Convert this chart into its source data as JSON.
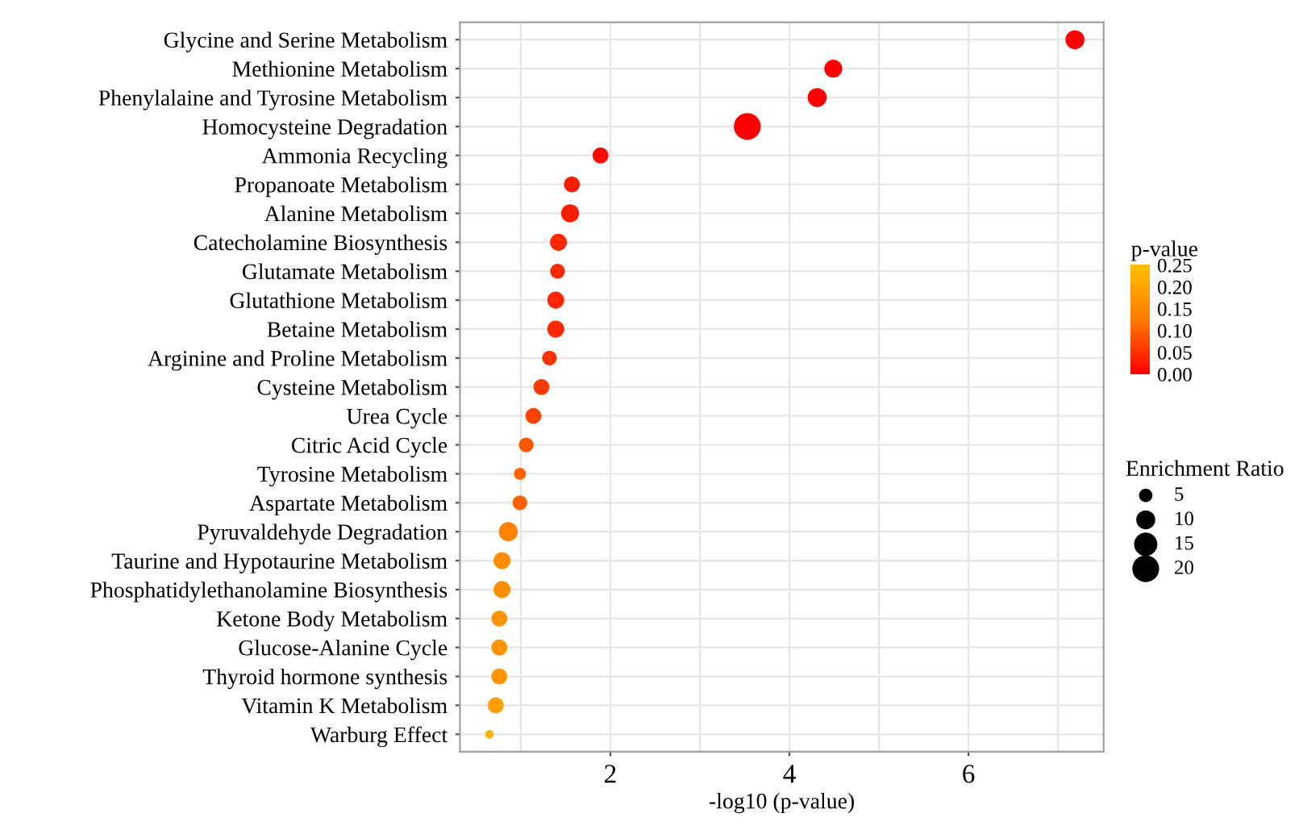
{
  "chart_data": {
    "type": "bubble",
    "orientation": "horizontal",
    "categories": [
      "Glycine and Serine Metabolism",
      "Methionine Metabolism",
      "Phenylalaine and Tyrosine Metabolism",
      "Homocysteine Degradation",
      "Ammonia Recycling",
      "Propanoate Metabolism",
      "Alanine Metabolism",
      "Catecholamine Biosynthesis",
      "Glutamate Metabolism",
      "Glutathione Metabolism",
      "Betaine Metabolism",
      "Arginine and Proline Metabolism",
      "Cysteine Metabolism",
      "Urea Cycle",
      "Citric Acid Cycle",
      "Tyrosine Metabolism",
      "Aspartate Metabolism",
      "Pyruvaldehyde Degradation",
      "Taurine and Hypotaurine Metabolism",
      "Phosphatidylethanolamine Biosynthesis",
      "Ketone Body Metabolism",
      "Glucose-Alanine Cycle",
      "Thyroid hormone synthesis",
      "Vitamin K Metabolism",
      "Warburg Effect"
    ],
    "values": [
      7.19,
      4.49,
      4.31,
      3.53,
      1.89,
      1.57,
      1.55,
      1.42,
      1.41,
      1.39,
      1.39,
      1.32,
      1.23,
      1.14,
      1.06,
      0.99,
      0.99,
      0.86,
      0.79,
      0.79,
      0.76,
      0.76,
      0.76,
      0.72,
      0.65
    ],
    "sizes": [
      10,
      9,
      10,
      20,
      7,
      7,
      9,
      8,
      6,
      8,
      8,
      6,
      7,
      7,
      6,
      4,
      6,
      10,
      8,
      8,
      7,
      7,
      7,
      7,
      2
    ],
    "size_legend": [
      5,
      10,
      15,
      20
    ],
    "cvalues": [
      0.0,
      0.0,
      0.0,
      0.0,
      0.01,
      0.03,
      0.03,
      0.04,
      0.04,
      0.04,
      0.04,
      0.05,
      0.06,
      0.07,
      0.09,
      0.1,
      0.1,
      0.14,
      0.16,
      0.16,
      0.17,
      0.17,
      0.17,
      0.19,
      0.22
    ],
    "clim": [
      0,
      0.25
    ],
    "cticks": [
      {
        "value": 0,
        "label": "0.00"
      },
      {
        "value": 0.05,
        "label": "0.05"
      },
      {
        "value": 0.1,
        "label": "0.10"
      },
      {
        "value": 0.15,
        "label": "0.15"
      },
      {
        "value": 0.2,
        "label": "0.20"
      },
      {
        "value": 0.25,
        "label": "0.25"
      }
    ],
    "clabel": "p-value",
    "legend_title": "Enrichment Ratio",
    "xlabel": "-log10 (p-value)",
    "xlim": [
      0.32,
      7.51
    ],
    "xticks": [
      2,
      4,
      6
    ],
    "grid": true
  }
}
